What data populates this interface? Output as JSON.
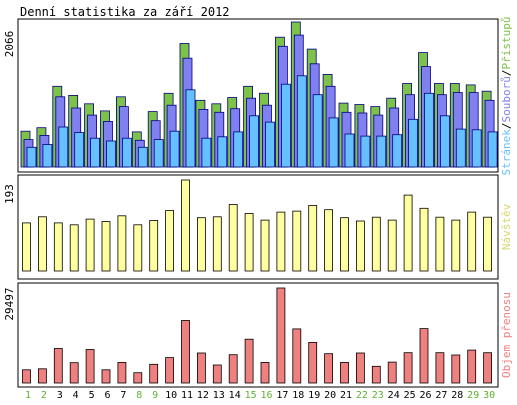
{
  "chart_data": [
    {
      "type": "bar",
      "title": "Denní statistika za září 2012",
      "ylabel_value": "2066",
      "categories": [
        "1",
        "2",
        "3",
        "4",
        "5",
        "6",
        "7",
        "8",
        "9",
        "10",
        "11",
        "12",
        "13",
        "14",
        "15",
        "16",
        "17",
        "18",
        "19",
        "20",
        "21",
        "22",
        "23",
        "24",
        "25",
        "26",
        "27",
        "28",
        "29",
        "30"
      ],
      "weekend_days": [
        "1",
        "2",
        "8",
        "9",
        "15",
        "16",
        "22",
        "23",
        "29",
        "30"
      ],
      "ylim": [
        0,
        2066
      ],
      "legend": {
        "items": [
          "Přístupů",
          "Souborů",
          "Stránek"
        ],
        "separator": "/",
        "placement": "right-vertical",
        "colors": {
          "Přístupů": "#7fc24a",
          "Souborů": "#8080f0",
          "Stránek": "#66c0ff"
        }
      },
      "series": [
        {
          "name": "Přístupů",
          "color": "#7fc24a",
          "values": [
            510,
            560,
            1150,
            1020,
            900,
            800,
            1000,
            500,
            790,
            1050,
            1760,
            950,
            900,
            990,
            1150,
            1050,
            1850,
            2066,
            1680,
            1320,
            910,
            890,
            860,
            980,
            1190,
            1630,
            1190,
            1190,
            1170,
            1080
          ]
        },
        {
          "name": "Souborů",
          "color": "#8080f0",
          "values": [
            390,
            450,
            1000,
            840,
            740,
            650,
            860,
            380,
            660,
            880,
            1550,
            820,
            780,
            830,
            980,
            880,
            1720,
            1880,
            1470,
            1150,
            780,
            770,
            740,
            840,
            1030,
            1430,
            1030,
            1060,
            1060,
            950
          ]
        },
        {
          "name": "Stránek",
          "color": "#66c0ff",
          "values": [
            280,
            320,
            570,
            490,
            410,
            370,
            410,
            280,
            390,
            510,
            1100,
            410,
            430,
            500,
            730,
            640,
            1180,
            1300,
            1030,
            700,
            470,
            440,
            440,
            460,
            680,
            1050,
            730,
            540,
            530,
            500
          ]
        }
      ]
    },
    {
      "type": "bar",
      "ylabel_value": "193",
      "categories": [
        "1",
        "2",
        "3",
        "4",
        "5",
        "6",
        "7",
        "8",
        "9",
        "10",
        "11",
        "12",
        "13",
        "14",
        "15",
        "16",
        "17",
        "18",
        "19",
        "20",
        "21",
        "22",
        "23",
        "24",
        "25",
        "26",
        "27",
        "28",
        "29",
        "30"
      ],
      "ylim": [
        0,
        193
      ],
      "legend": {
        "items": [
          "Návštěv"
        ],
        "placement": "right-vertical",
        "colors": {
          "Návštěv": "#ffffa0"
        }
      },
      "series": [
        {
          "name": "Návštěv",
          "color": "#ffffa0",
          "values": [
            102,
            115,
            102,
            98,
            110,
            105,
            117,
            98,
            107,
            128,
            193,
            113,
            115,
            141,
            122,
            108,
            125,
            127,
            139,
            130,
            113,
            106,
            114,
            108,
            161,
            133,
            114,
            108,
            125,
            114
          ]
        }
      ]
    },
    {
      "type": "bar",
      "ylabel_value": "29497",
      "categories": [
        "1",
        "2",
        "3",
        "4",
        "5",
        "6",
        "7",
        "8",
        "9",
        "10",
        "11",
        "12",
        "13",
        "14",
        "15",
        "16",
        "17",
        "18",
        "19",
        "20",
        "21",
        "22",
        "23",
        "24",
        "25",
        "26",
        "27",
        "28",
        "29",
        "30"
      ],
      "ylim": [
        0,
        29497
      ],
      "legend": {
        "items": [
          "Objem přenosu"
        ],
        "placement": "right-vertical",
        "colors": {
          "Objem přenosu": "#f08080"
        }
      },
      "series": [
        {
          "name": "Objem přenosu",
          "color": "#f08080",
          "values": [
            4100,
            4400,
            10700,
            6300,
            10400,
            4100,
            6400,
            3200,
            5800,
            7900,
            19400,
            9300,
            5600,
            8800,
            13600,
            6400,
            29497,
            16800,
            12600,
            9100,
            6400,
            9300,
            5200,
            6500,
            9400,
            16900,
            9400,
            8700,
            10200,
            9400
          ]
        }
      ]
    }
  ]
}
